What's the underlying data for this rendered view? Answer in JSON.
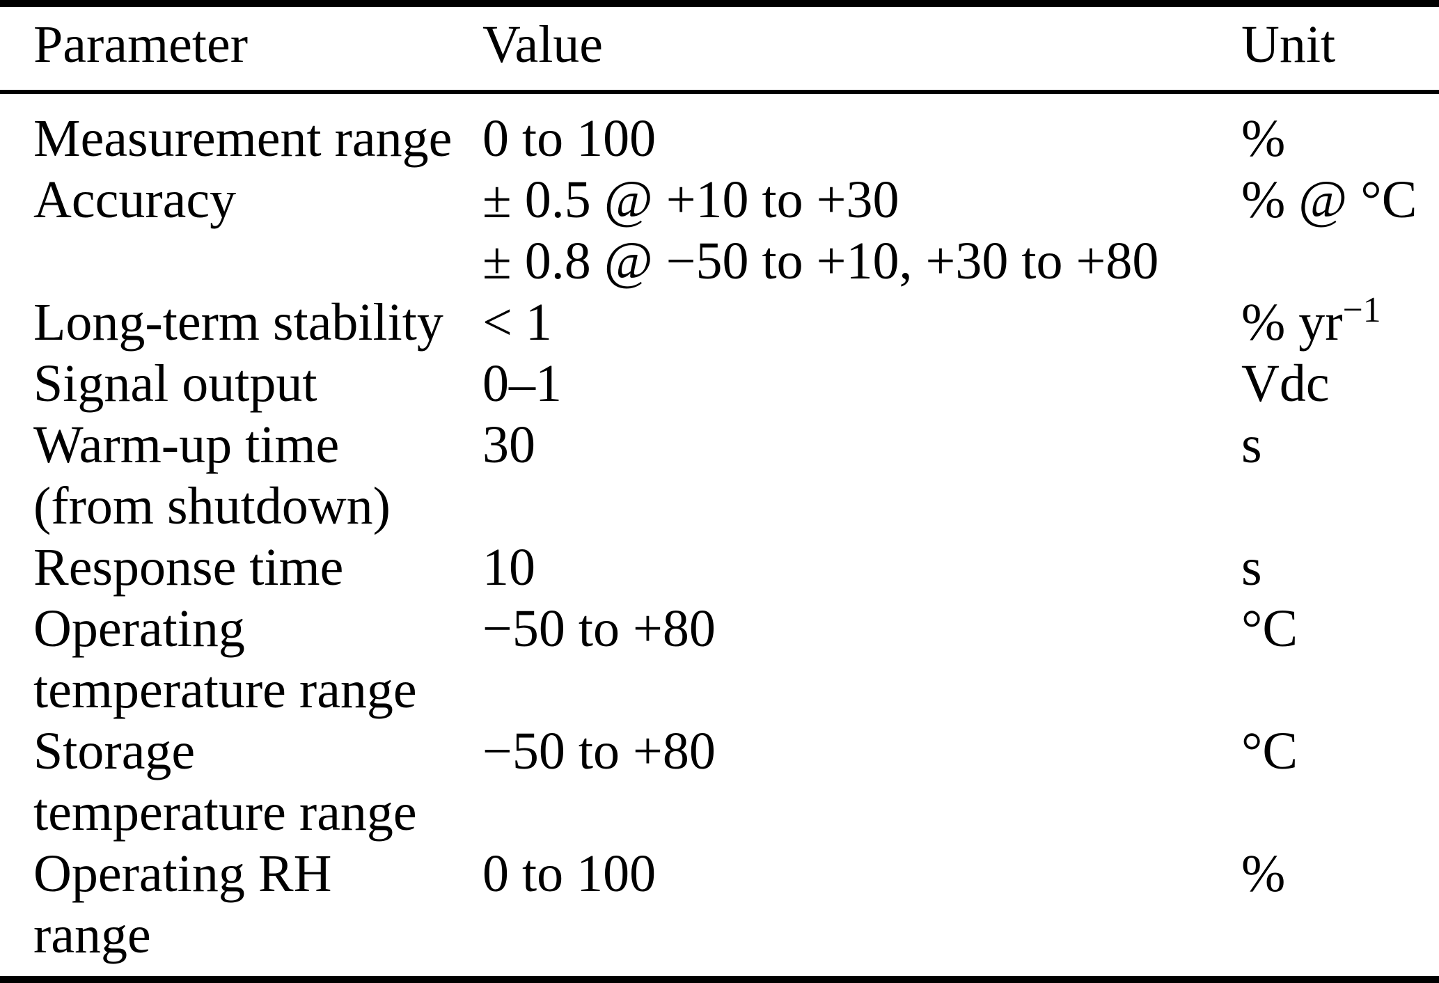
{
  "colors": {
    "background": "#ffffff",
    "text": "#000000",
    "rule": "#000000"
  },
  "table": {
    "columns": {
      "parameter": "Parameter",
      "value": "Value",
      "unit": "Unit"
    },
    "rows": [
      {
        "parameter": [
          "Measurement range"
        ],
        "value": [
          "0 to 100"
        ],
        "unit": "%"
      },
      {
        "parameter": [
          "Accuracy"
        ],
        "value": [
          "± 0.5 @ +10 to +30",
          "± 0.8 @ −50 to +10, +30 to +80"
        ],
        "unit": "% @ °C"
      },
      {
        "parameter": [
          "Long-term stability"
        ],
        "value": [
          "< 1"
        ],
        "unit": "% yr",
        "unit_sup": "−1"
      },
      {
        "parameter": [
          "Signal output"
        ],
        "value": [
          "0–1"
        ],
        "unit": "Vdc"
      },
      {
        "parameter": [
          "Warm-up time",
          "(from shutdown)"
        ],
        "value": [
          "30"
        ],
        "unit": "s"
      },
      {
        "parameter": [
          "Response time"
        ],
        "value": [
          "10"
        ],
        "unit": "s"
      },
      {
        "parameter": [
          "Operating",
          "temperature range"
        ],
        "value": [
          "−50 to +80"
        ],
        "unit": "°C"
      },
      {
        "parameter": [
          "Storage",
          "temperature range"
        ],
        "value": [
          "−50 to +80"
        ],
        "unit": "°C"
      },
      {
        "parameter": [
          "Operating RH",
          "range"
        ],
        "value": [
          "0 to 100"
        ],
        "unit": "%"
      }
    ]
  }
}
